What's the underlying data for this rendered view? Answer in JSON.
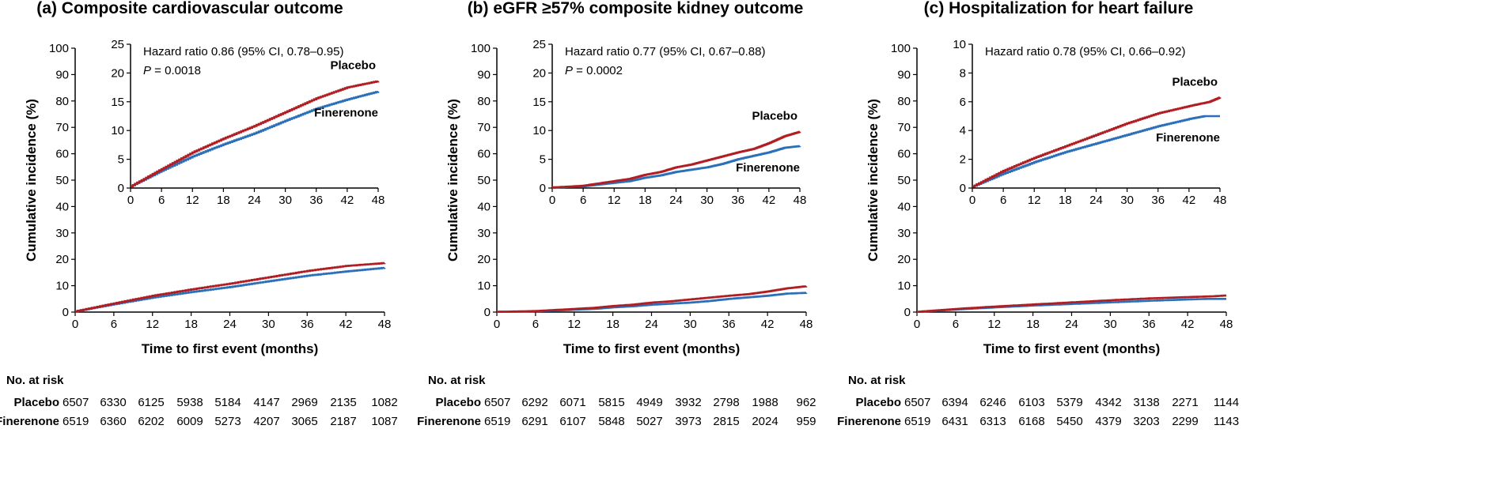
{
  "colors": {
    "placebo": "#B01E24",
    "finerenone": "#2B6FB8",
    "axis": "#000000"
  },
  "chart_data": [
    {
      "type": "line",
      "title": "(a) Composite cardiovascular outcome",
      "xlabel": "Time to first event (months)",
      "ylabel": "Cumulative incidence (%)",
      "xlim": [
        0,
        48
      ],
      "ylim": [
        0,
        100
      ],
      "xticks": [
        "0",
        "6",
        "12",
        "18",
        "24",
        "30",
        "36",
        "42",
        "48"
      ],
      "yticks": [
        "0",
        "10",
        "20",
        "30",
        "40",
        "50",
        "60",
        "70",
        "80",
        "90",
        "100"
      ],
      "series": [
        {
          "name": "Placebo",
          "x": [
            0,
            6,
            12,
            18,
            24,
            30,
            36,
            42,
            48
          ],
          "y": [
            0.3,
            3.3,
            6.2,
            8.6,
            10.8,
            13.2,
            15.6,
            17.5,
            18.6
          ]
        },
        {
          "name": "Finerenone",
          "x": [
            0,
            6,
            12,
            18,
            24,
            30,
            36,
            42,
            48
          ],
          "y": [
            0.3,
            3.0,
            5.5,
            7.6,
            9.5,
            11.7,
            13.8,
            15.4,
            16.8
          ]
        }
      ],
      "inset": {
        "ylim": [
          0,
          25
        ],
        "yticks": [
          "0",
          "5",
          "10",
          "15",
          "20",
          "25"
        ],
        "xticks": [
          "0",
          "6",
          "12",
          "18",
          "24",
          "30",
          "36",
          "42",
          "48"
        ],
        "hazard_ratio": "Hazard ratio 0.86 (95% CI, 0.78–0.95)",
        "p_label": "P",
        "p_value": " = 0.0018",
        "placebo_label": "Placebo",
        "finerenone_label": "Finerenone",
        "placebo_y": [
          0.3,
          3.3,
          6.2,
          8.6,
          10.8,
          13.2,
          15.6,
          17.5,
          18.6
        ],
        "finerenone_y": [
          0.3,
          3.0,
          5.5,
          7.6,
          9.5,
          11.7,
          13.8,
          15.4,
          16.8
        ]
      },
      "risk_table": {
        "header": "No. at risk",
        "rows": [
          {
            "label": "Placebo",
            "values": [
              "6507",
              "6330",
              "6125",
              "5938",
              "5184",
              "4147",
              "2969",
              "2135",
              "1082"
            ]
          },
          {
            "label": "Finerenone",
            "values": [
              "6519",
              "6360",
              "6202",
              "6009",
              "5273",
              "4207",
              "3065",
              "2187",
              "1087"
            ]
          }
        ]
      }
    },
    {
      "type": "line",
      "title": "(b) eGFR ≥57% composite kidney outcome",
      "xlabel": "Time to first event (months)",
      "ylabel": "Cumulative incidence (%)",
      "xlim": [
        0,
        48
      ],
      "ylim": [
        0,
        100
      ],
      "xticks": [
        "0",
        "6",
        "12",
        "18",
        "24",
        "30",
        "36",
        "42",
        "48"
      ],
      "yticks": [
        "0",
        "10",
        "20",
        "30",
        "40",
        "50",
        "60",
        "70",
        "80",
        "90",
        "100"
      ],
      "series": [
        {
          "name": "Placebo",
          "x": [
            0,
            6,
            9,
            12,
            15,
            18,
            21,
            24,
            27,
            30,
            33,
            36,
            39,
            42,
            45,
            48
          ],
          "y": [
            0.1,
            0.4,
            0.8,
            1.2,
            1.6,
            2.3,
            2.8,
            3.6,
            4.1,
            4.8,
            5.5,
            6.2,
            6.8,
            7.8,
            9.0,
            9.8
          ]
        },
        {
          "name": "Finerenone",
          "x": [
            0,
            6,
            9,
            12,
            15,
            18,
            21,
            24,
            27,
            30,
            33,
            36,
            39,
            42,
            45,
            48
          ],
          "y": [
            0.1,
            0.3,
            0.6,
            0.9,
            1.2,
            1.8,
            2.2,
            2.8,
            3.2,
            3.6,
            4.2,
            5.0,
            5.6,
            6.2,
            7.0,
            7.3
          ]
        }
      ],
      "inset": {
        "ylim": [
          0,
          25
        ],
        "yticks": [
          "0",
          "5",
          "10",
          "15",
          "20",
          "25"
        ],
        "xticks": [
          "0",
          "6",
          "12",
          "18",
          "24",
          "30",
          "36",
          "42",
          "48"
        ],
        "hazard_ratio": "Hazard ratio 0.77 (95% CI, 0.67–0.88)",
        "p_label": "P",
        "p_value": " = 0.0002",
        "placebo_label": "Placebo",
        "finerenone_label": "Finerenone",
        "placebo_y": [
          0.1,
          0.4,
          0.8,
          1.2,
          1.6,
          2.3,
          2.8,
          3.6,
          4.1,
          4.8,
          5.5,
          6.2,
          6.8,
          7.8,
          9.0,
          9.8
        ],
        "finerenone_y": [
          0.1,
          0.3,
          0.6,
          0.9,
          1.2,
          1.8,
          2.2,
          2.8,
          3.2,
          3.6,
          4.2,
          5.0,
          5.6,
          6.2,
          7.0,
          7.3
        ]
      },
      "risk_table": {
        "header": "No. at risk",
        "rows": [
          {
            "label": "Placebo",
            "values": [
              "6507",
              "6292",
              "6071",
              "5815",
              "4949",
              "3932",
              "2798",
              "1988",
              "962"
            ]
          },
          {
            "label": "Finerenone",
            "values": [
              "6519",
              "6291",
              "6107",
              "5848",
              "5027",
              "3973",
              "2815",
              "2024",
              "959"
            ]
          }
        ]
      }
    },
    {
      "type": "line",
      "title": "(c) Hospitalization for heart failure",
      "xlabel": "Time to first event (months)",
      "ylabel": "Cumulative incidence (%)",
      "xlim": [
        0,
        48
      ],
      "ylim": [
        0,
        100
      ],
      "xticks": [
        "0",
        "6",
        "12",
        "18",
        "24",
        "30",
        "36",
        "42",
        "48"
      ],
      "yticks": [
        "0",
        "10",
        "20",
        "30",
        "40",
        "50",
        "60",
        "70",
        "80",
        "90",
        "100"
      ],
      "series": [
        {
          "name": "Placebo",
          "x": [
            0,
            6,
            12,
            18,
            24,
            30,
            36,
            42,
            46,
            48
          ],
          "y": [
            0.1,
            1.2,
            2.1,
            2.9,
            3.7,
            4.5,
            5.2,
            5.7,
            6.0,
            6.3
          ]
        },
        {
          "name": "Finerenone",
          "x": [
            0,
            6,
            12,
            18,
            24,
            30,
            36,
            42,
            45,
            48
          ],
          "y": [
            0.1,
            1.0,
            1.8,
            2.5,
            3.1,
            3.7,
            4.3,
            4.8,
            5.0,
            5.0
          ]
        }
      ],
      "inset": {
        "ylim": [
          0,
          10
        ],
        "yticks": [
          "0",
          "2",
          "4",
          "6",
          "8",
          "10"
        ],
        "xticks": [
          "0",
          "6",
          "12",
          "18",
          "24",
          "30",
          "36",
          "42",
          "48"
        ],
        "hazard_ratio": "Hazard ratio 0.78 (95% CI, 0.66–0.92)",
        "p_label": "",
        "p_value": "",
        "placebo_label": "Placebo",
        "finerenone_label": "Finerenone",
        "placebo_y": [
          0.1,
          1.2,
          2.1,
          2.9,
          3.7,
          4.5,
          5.2,
          5.7,
          6.0,
          6.3
        ],
        "finerenone_y": [
          0.1,
          1.0,
          1.8,
          2.5,
          3.1,
          3.7,
          4.3,
          4.8,
          5.0,
          5.0
        ]
      },
      "risk_table": {
        "header": "No. at risk",
        "rows": [
          {
            "label": "Placebo",
            "values": [
              "6507",
              "6394",
              "6246",
              "6103",
              "5379",
              "4342",
              "3138",
              "2271",
              "1144"
            ]
          },
          {
            "label": "Finerenone",
            "values": [
              "6519",
              "6431",
              "6313",
              "6168",
              "5450",
              "4379",
              "3203",
              "2299",
              "1143"
            ]
          }
        ]
      }
    }
  ]
}
